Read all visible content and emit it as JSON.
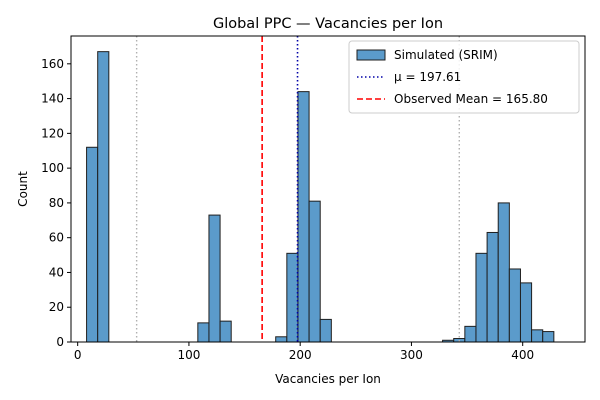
{
  "chart_data": {
    "type": "bar",
    "title": "Global PPC — Vacancies per Ion",
    "xlabel": "Vacancies per Ion",
    "ylabel": "Count",
    "xlim": [
      -6,
      456
    ],
    "ylim": [
      0,
      176
    ],
    "xticks": [
      0,
      100,
      200,
      300,
      400
    ],
    "yticks": [
      0,
      20,
      40,
      60,
      80,
      100,
      120,
      140,
      160
    ],
    "bin_width": 10,
    "bins": [
      {
        "x0": 8,
        "count": 112
      },
      {
        "x0": 18,
        "count": 167
      },
      {
        "x0": 108,
        "count": 11
      },
      {
        "x0": 118,
        "count": 73
      },
      {
        "x0": 128,
        "count": 12
      },
      {
        "x0": 178,
        "count": 3
      },
      {
        "x0": 188,
        "count": 51
      },
      {
        "x0": 198,
        "count": 144
      },
      {
        "x0": 208,
        "count": 81
      },
      {
        "x0": 218,
        "count": 13
      },
      {
        "x0": 328,
        "count": 1
      },
      {
        "x0": 338,
        "count": 2
      },
      {
        "x0": 348,
        "count": 9
      },
      {
        "x0": 358,
        "count": 51
      },
      {
        "x0": 368,
        "count": 63
      },
      {
        "x0": 378,
        "count": 80
      },
      {
        "x0": 388,
        "count": 42
      },
      {
        "x0": 398,
        "count": 34
      },
      {
        "x0": 408,
        "count": 7
      },
      {
        "x0": 418,
        "count": 6
      }
    ],
    "reference_lines": [
      {
        "x": 197.61,
        "color": "#0000a8",
        "style": "dotted",
        "label": "μ = 197.61"
      },
      {
        "x": 165.8,
        "color": "#ff0000",
        "style": "dashed",
        "label": "Observed Mean = 165.80"
      },
      {
        "x": 53,
        "color": "#b0b0b0",
        "style": "dotted",
        "label": ""
      },
      {
        "x": 343,
        "color": "#b0b0b0",
        "style": "dotted",
        "label": ""
      }
    ],
    "legend": {
      "placement": "top-right",
      "entries": [
        {
          "label": "Simulated (SRIM)",
          "kind": "bar"
        },
        {
          "label": "μ = 197.61",
          "kind": "line",
          "ref": 0
        },
        {
          "label": "Observed Mean = 165.80",
          "kind": "line",
          "ref": 1
        }
      ]
    },
    "bar_color": "#5b9bcb",
    "bar_edge_color": "#1f1f1f",
    "grid": false
  }
}
